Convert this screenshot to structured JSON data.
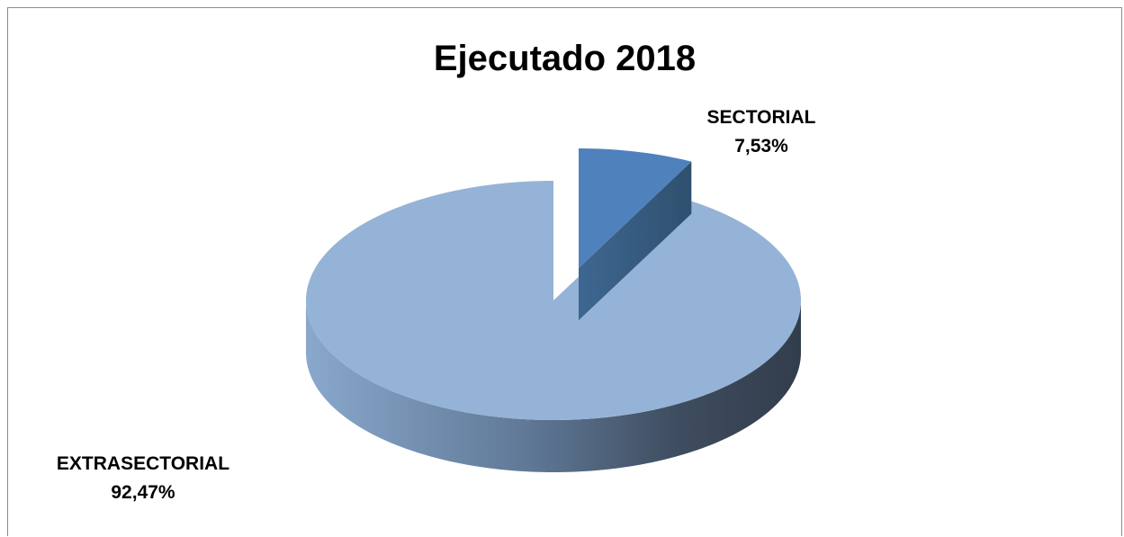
{
  "chart_data": {
    "type": "pie",
    "title": "Ejecutado 2018",
    "labels": [
      "EXTRASECTORIAL",
      "SECTORIAL"
    ],
    "values": [
      92.47,
      7.53
    ],
    "value_labels": [
      "92,47%",
      "7,53%"
    ],
    "colors": [
      "#95b3d7",
      "#4f81bd"
    ],
    "exploded": [
      "SECTORIAL"
    ],
    "three_d": true,
    "legend": "none"
  }
}
